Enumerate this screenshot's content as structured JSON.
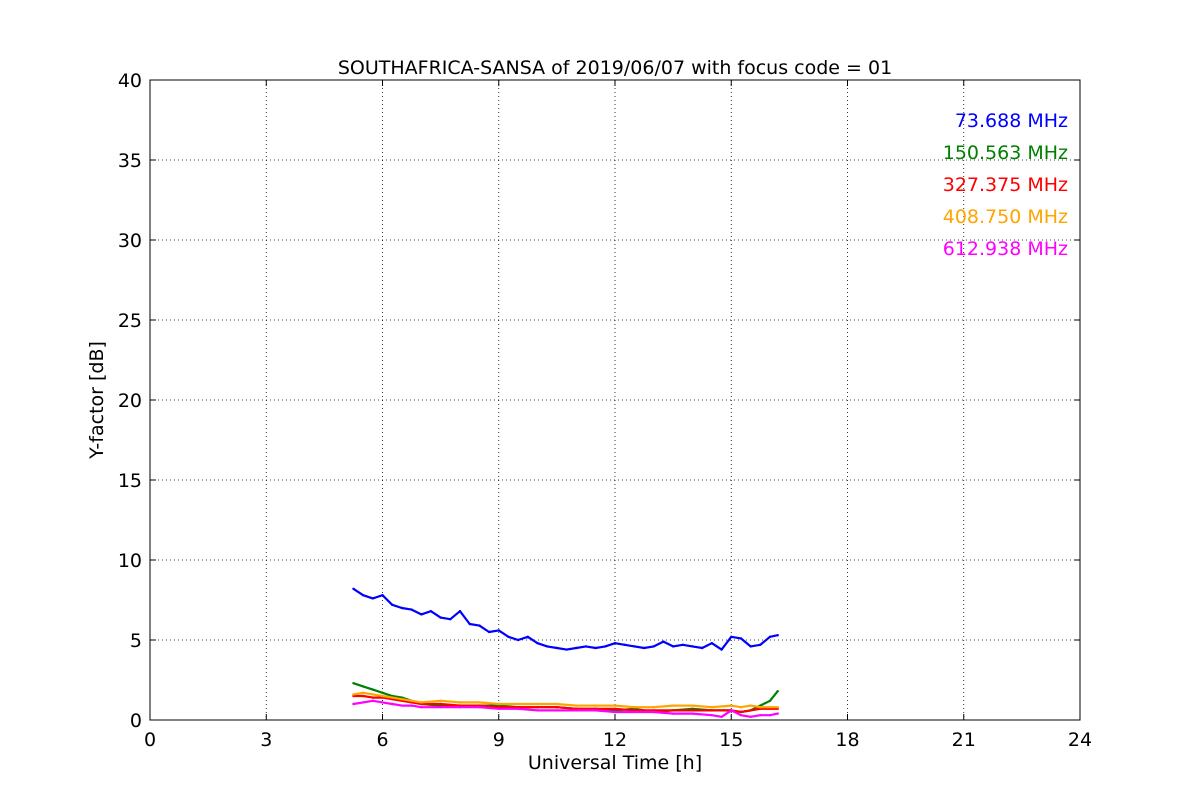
{
  "chart_data": {
    "type": "line",
    "title": "SOUTHAFRICA-SANSA of 2019/06/07 with focus code = 01",
    "xlabel": "Universal Time [h]",
    "ylabel": "Y-factor [dB]",
    "xlim": [
      0,
      24
    ],
    "ylim": [
      0,
      40
    ],
    "xticks": [
      "0",
      "3",
      "6",
      "9",
      "12",
      "15",
      "18",
      "21",
      "24"
    ],
    "yticks": [
      "0",
      "5",
      "10",
      "15",
      "20",
      "25",
      "30",
      "35",
      "40"
    ],
    "grid": true,
    "legend_position": "top-right",
    "series": [
      {
        "name": "73.688 MHz",
        "color": "#0000ff",
        "x": [
          5.25,
          5.5,
          5.75,
          6.0,
          6.25,
          6.5,
          6.75,
          7.0,
          7.25,
          7.5,
          7.75,
          8.0,
          8.25,
          8.5,
          8.75,
          9.0,
          9.25,
          9.5,
          9.75,
          10.0,
          10.25,
          10.5,
          10.75,
          11.0,
          11.25,
          11.5,
          11.75,
          12.0,
          12.25,
          12.5,
          12.75,
          13.0,
          13.25,
          13.5,
          13.75,
          14.0,
          14.25,
          14.5,
          14.75,
          15.0,
          15.25,
          15.5,
          15.75,
          16.0,
          16.2
        ],
        "y": [
          8.2,
          7.8,
          7.6,
          7.8,
          7.2,
          7.0,
          6.9,
          6.6,
          6.8,
          6.4,
          6.3,
          6.8,
          6.0,
          5.9,
          5.5,
          5.6,
          5.2,
          5.0,
          5.2,
          4.8,
          4.6,
          4.5,
          4.4,
          4.5,
          4.6,
          4.5,
          4.6,
          4.8,
          4.7,
          4.6,
          4.5,
          4.6,
          4.9,
          4.6,
          4.7,
          4.6,
          4.5,
          4.8,
          4.4,
          5.2,
          5.1,
          4.6,
          4.7,
          5.2,
          5.3
        ]
      },
      {
        "name": "150.563 MHz",
        "color": "#008000",
        "x": [
          5.25,
          5.5,
          5.75,
          6.0,
          6.25,
          6.5,
          6.75,
          7.0,
          7.5,
          8.0,
          8.5,
          9.0,
          9.5,
          10.0,
          10.5,
          11.0,
          11.5,
          12.0,
          12.5,
          13.0,
          13.5,
          14.0,
          14.5,
          15.0,
          15.25,
          15.5,
          15.75,
          16.0,
          16.2
        ],
        "y": [
          2.3,
          2.1,
          1.9,
          1.7,
          1.5,
          1.4,
          1.2,
          1.0,
          0.9,
          0.9,
          0.9,
          0.9,
          0.8,
          0.8,
          0.8,
          0.7,
          0.7,
          0.6,
          0.7,
          0.5,
          0.6,
          0.7,
          0.6,
          0.6,
          0.5,
          0.6,
          0.9,
          1.2,
          1.8
        ]
      },
      {
        "name": "327.375 MHz",
        "color": "#ff0000",
        "x": [
          5.25,
          5.5,
          5.75,
          6.0,
          6.25,
          6.5,
          6.75,
          7.0,
          7.5,
          8.0,
          8.5,
          9.0,
          9.5,
          10.0,
          10.5,
          11.0,
          11.5,
          12.0,
          12.5,
          13.0,
          13.5,
          14.0,
          14.5,
          15.0,
          15.25,
          15.5,
          15.75,
          16.0,
          16.2
        ],
        "y": [
          1.5,
          1.5,
          1.4,
          1.4,
          1.3,
          1.2,
          1.1,
          1.0,
          1.0,
          0.9,
          0.9,
          0.8,
          0.8,
          0.8,
          0.8,
          0.7,
          0.7,
          0.7,
          0.6,
          0.6,
          0.6,
          0.6,
          0.6,
          0.6,
          0.5,
          0.6,
          0.7,
          0.7,
          0.7
        ]
      },
      {
        "name": "408.750 MHz",
        "color": "#ffa500",
        "x": [
          5.25,
          5.5,
          5.75,
          6.0,
          6.25,
          6.5,
          6.75,
          7.0,
          7.5,
          8.0,
          8.5,
          9.0,
          9.5,
          10.0,
          10.5,
          11.0,
          11.5,
          12.0,
          12.5,
          13.0,
          13.5,
          14.0,
          14.5,
          15.0,
          15.25,
          15.5,
          15.75,
          16.0,
          16.2
        ],
        "y": [
          1.6,
          1.7,
          1.6,
          1.5,
          1.4,
          1.3,
          1.2,
          1.1,
          1.2,
          1.1,
          1.1,
          1.0,
          1.0,
          1.0,
          1.0,
          0.9,
          0.9,
          0.9,
          0.8,
          0.8,
          0.9,
          0.9,
          0.8,
          0.9,
          0.8,
          0.9,
          0.8,
          0.8,
          0.8
        ]
      },
      {
        "name": "612.938 MHz",
        "color": "#ff00ff",
        "x": [
          5.25,
          5.5,
          5.75,
          6.0,
          6.25,
          6.5,
          6.75,
          7.0,
          7.5,
          8.0,
          8.5,
          9.0,
          9.5,
          10.0,
          10.5,
          11.0,
          11.5,
          12.0,
          12.5,
          13.0,
          13.5,
          14.0,
          14.5,
          14.75,
          15.0,
          15.25,
          15.5,
          15.75,
          16.0,
          16.2
        ],
        "y": [
          1.0,
          1.1,
          1.2,
          1.1,
          1.0,
          0.9,
          0.9,
          0.8,
          0.8,
          0.8,
          0.8,
          0.7,
          0.7,
          0.6,
          0.6,
          0.6,
          0.6,
          0.5,
          0.5,
          0.5,
          0.4,
          0.4,
          0.3,
          0.2,
          0.6,
          0.3,
          0.2,
          0.3,
          0.3,
          0.4
        ]
      }
    ]
  }
}
